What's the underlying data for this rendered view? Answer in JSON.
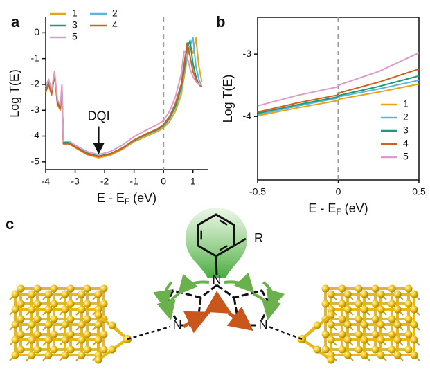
{
  "chart_data": [
    {
      "type": "line",
      "panel": "a",
      "ylabel": "Log T(E)",
      "xlabel_parts": [
        "E - E",
        "F",
        " (eV)"
      ],
      "xlim": [
        -4,
        1.5
      ],
      "ylim": [
        -5.3,
        0.6
      ],
      "xticks": [
        -4,
        -3,
        -2,
        -1,
        0,
        1
      ],
      "yticks": [
        0,
        -1,
        -2,
        -3,
        -4,
        -5
      ],
      "vline": 0,
      "legend": "upper left",
      "legend_columns": 2,
      "annotations": [
        {
          "text": "DQI",
          "x": -2.2,
          "y": -3.25,
          "arrow_y": -4.6
        }
      ],
      "x": [
        -4,
        -3.9,
        -3.8,
        -3.7,
        -3.6,
        -3.5,
        -3.45,
        -3.4,
        -3.2,
        -3,
        -2.6,
        -2.2,
        -1.8,
        -1.4,
        -1,
        -0.6,
        -0.2,
        0,
        0.2,
        0.4,
        0.6,
        0.7,
        0.8,
        0.9,
        1.0,
        1.1,
        1.2,
        1.3
      ],
      "series": [
        {
          "name": "1",
          "color": "#e8a317",
          "values": [
            -2.3,
            -2.0,
            -2.4,
            -1.6,
            -2.8,
            -3.0,
            -2.2,
            -4.3,
            -4.3,
            -4.45,
            -4.72,
            -4.84,
            -4.74,
            -4.52,
            -4.22,
            -4.02,
            -3.82,
            -3.68,
            -3.45,
            -3.05,
            -2.4,
            -1.7,
            -1.0,
            -0.5,
            -0.8,
            -0.2,
            -1.3,
            -1.9
          ]
        },
        {
          "name": "2",
          "color": "#5bb4e0",
          "values": [
            -2.2,
            -1.9,
            -2.3,
            -1.6,
            -2.7,
            -2.9,
            -2.1,
            -4.25,
            -4.25,
            -4.4,
            -4.68,
            -4.8,
            -4.7,
            -4.48,
            -4.18,
            -3.96,
            -3.76,
            -3.62,
            -3.35,
            -2.9,
            -2.2,
            -1.5,
            -0.8,
            -0.5,
            -0.2,
            -1.3,
            -1.8,
            -2.1
          ]
        },
        {
          "name": "3",
          "color": "#1a9a7a",
          "values": [
            -2.2,
            -1.9,
            -2.3,
            -1.55,
            -2.7,
            -2.9,
            -2.1,
            -4.25,
            -4.25,
            -4.4,
            -4.66,
            -4.78,
            -4.68,
            -4.46,
            -4.16,
            -3.94,
            -3.74,
            -3.58,
            -3.3,
            -2.85,
            -2.1,
            -1.4,
            -0.6,
            -0.3,
            -1.2,
            -1.7,
            -2.0,
            -2.1
          ]
        },
        {
          "name": "4",
          "color": "#d2601a",
          "values": [
            -2.3,
            -2.0,
            -2.4,
            -1.6,
            -2.75,
            -2.95,
            -2.2,
            -4.3,
            -4.3,
            -4.42,
            -4.7,
            -4.8,
            -4.7,
            -4.47,
            -4.15,
            -3.92,
            -3.72,
            -3.55,
            -3.25,
            -2.75,
            -2.0,
            -1.2,
            -0.4,
            -0.9,
            -1.5,
            -1.8,
            -2.0,
            -2.1
          ]
        },
        {
          "name": "5",
          "color": "#e09ac8",
          "values": [
            -2.1,
            -1.8,
            -2.2,
            -1.5,
            -2.6,
            -2.8,
            -2.0,
            -4.2,
            -4.2,
            -4.35,
            -4.6,
            -4.72,
            -4.6,
            -4.35,
            -4.02,
            -3.78,
            -3.55,
            -3.4,
            -3.05,
            -2.5,
            -1.6,
            -0.7,
            -0.9,
            -1.4,
            -1.7,
            -1.9,
            -2.0,
            -2.0
          ]
        }
      ]
    },
    {
      "type": "line",
      "panel": "b",
      "ylabel": "Log T(E)",
      "xlabel_parts": [
        "E - E",
        "F",
        " (eV)"
      ],
      "xlim": [
        -0.5,
        0.5
      ],
      "ylim": [
        -5.02,
        -2.41
      ],
      "xticks": [
        -0.5,
        0,
        0.5
      ],
      "yticks": [
        -3,
        -4
      ],
      "vline": 0,
      "legend": "lower right",
      "legend_columns": 1,
      "x": [
        -0.5,
        -0.25,
        -0.01,
        0.01,
        0.25,
        0.5
      ],
      "series": [
        {
          "name": "1",
          "color": "#e8a317",
          "values": [
            -3.99,
            -3.86,
            -3.75,
            -3.72,
            -3.61,
            -3.48
          ]
        },
        {
          "name": "2",
          "color": "#5bb4e0",
          "values": [
            -3.97,
            -3.83,
            -3.71,
            -3.68,
            -3.56,
            -3.42
          ]
        },
        {
          "name": "3",
          "color": "#1a9a7a",
          "values": [
            -3.95,
            -3.81,
            -3.69,
            -3.66,
            -3.52,
            -3.35
          ]
        },
        {
          "name": "4",
          "color": "#d2601a",
          "values": [
            -3.93,
            -3.78,
            -3.66,
            -3.62,
            -3.45,
            -3.24
          ]
        },
        {
          "name": "5",
          "color": "#e09ac8",
          "values": [
            -3.83,
            -3.66,
            -3.53,
            -3.49,
            -3.28,
            -2.98
          ]
        }
      ]
    }
  ],
  "diagram": {
    "panel": "c",
    "atoms": [
      "N",
      "N",
      "N"
    ],
    "substituent": "R"
  }
}
